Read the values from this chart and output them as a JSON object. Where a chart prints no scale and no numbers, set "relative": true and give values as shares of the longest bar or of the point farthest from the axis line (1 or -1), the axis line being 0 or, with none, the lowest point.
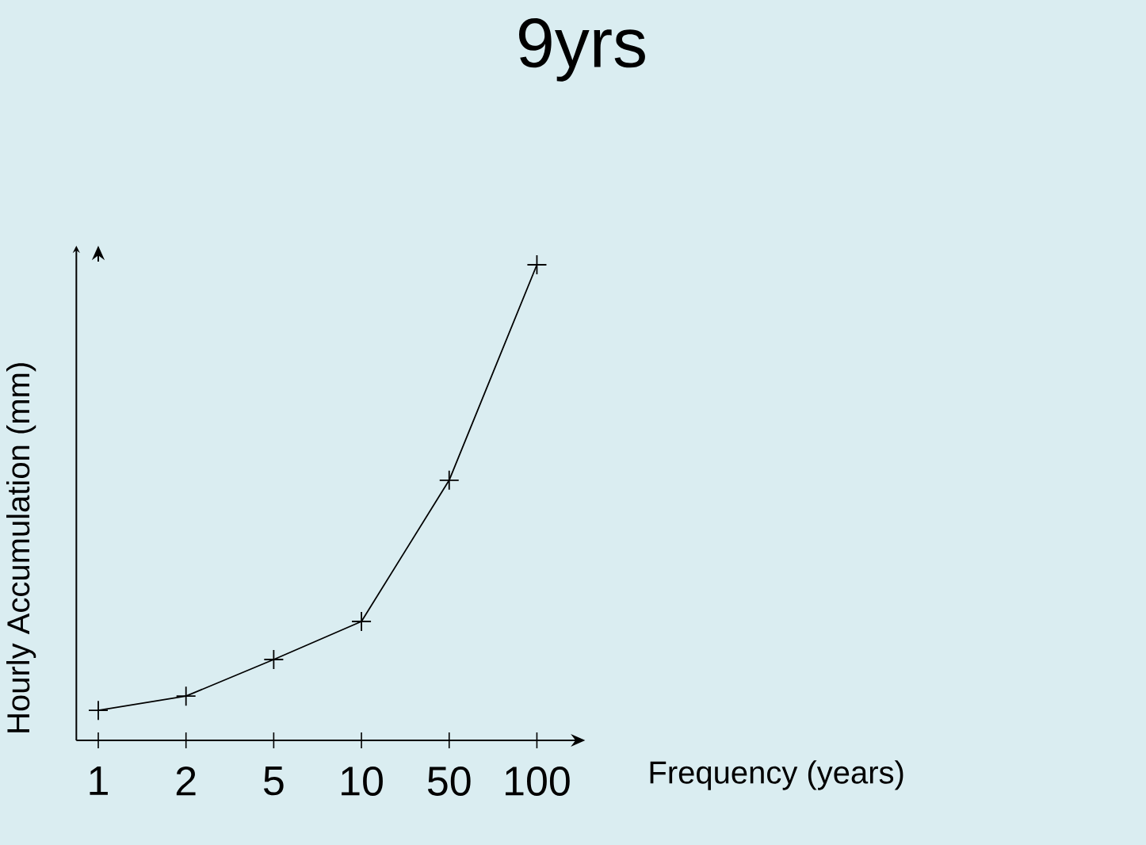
{
  "chart_data": {
    "type": "line",
    "title": "9yrs",
    "xlabel": "Frequency (years)",
    "ylabel": "Hourly Accumulation (mm)",
    "categories": [
      "1",
      "2",
      "5",
      "10",
      "50",
      "100"
    ],
    "values": [
      0.063,
      0.093,
      0.17,
      0.25,
      0.547,
      1
    ],
    "color": "#000000",
    "relative": true,
    "marker": "cross"
  }
}
